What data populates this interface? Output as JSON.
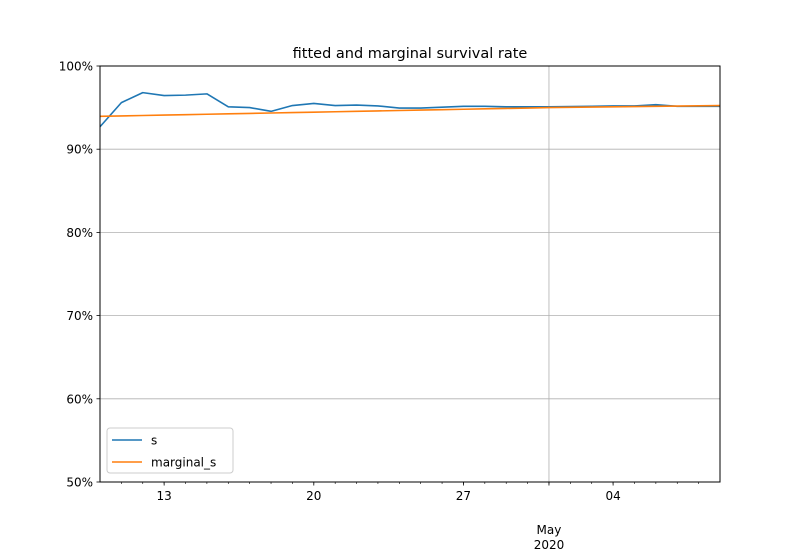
{
  "chart_data": {
    "type": "line",
    "title": "fitted and marginal survival rate",
    "xlabel": "",
    "ylabel": "",
    "x": [
      "2020-04-10",
      "2020-04-11",
      "2020-04-12",
      "2020-04-13",
      "2020-04-14",
      "2020-04-15",
      "2020-04-16",
      "2020-04-17",
      "2020-04-18",
      "2020-04-19",
      "2020-04-20",
      "2020-04-21",
      "2020-04-22",
      "2020-04-23",
      "2020-04-24",
      "2020-04-25",
      "2020-04-26",
      "2020-04-27",
      "2020-04-28",
      "2020-04-29",
      "2020-04-30",
      "2020-05-01",
      "2020-05-02",
      "2020-05-03",
      "2020-05-04",
      "2020-05-05",
      "2020-05-06",
      "2020-05-07",
      "2020-05-08",
      "2020-05-09"
    ],
    "xlim": [
      "2020-04-10",
      "2020-05-09"
    ],
    "ylim": [
      50,
      100
    ],
    "y_ticks": [
      {
        "value": 50,
        "label": "50%"
      },
      {
        "value": 60,
        "label": "60%"
      },
      {
        "value": 70,
        "label": "70%"
      },
      {
        "value": 80,
        "label": "80%"
      },
      {
        "value": 90,
        "label": "90%"
      },
      {
        "value": 100,
        "label": "100%"
      }
    ],
    "x_major_ticks": [
      {
        "date": "2020-04-13",
        "label": "13"
      },
      {
        "date": "2020-04-20",
        "label": "20"
      },
      {
        "date": "2020-04-27",
        "label": "27"
      },
      {
        "date": "2020-05-04",
        "label": "04"
      }
    ],
    "x_month_tick": {
      "date": "2020-05-01",
      "label": "May",
      "sublabel": "2020"
    },
    "grid": {
      "y": true,
      "x_month": true
    },
    "legend_position": "lower-left",
    "series": [
      {
        "name": "s",
        "color": "#1f77b4",
        "values": [
          92.7,
          95.6,
          96.8,
          96.45,
          96.5,
          96.65,
          95.1,
          95.0,
          94.55,
          95.25,
          95.5,
          95.25,
          95.3,
          95.2,
          94.95,
          94.95,
          95.05,
          95.15,
          95.15,
          95.1,
          95.1,
          95.1,
          95.12,
          95.15,
          95.2,
          95.2,
          95.35,
          95.15,
          95.15,
          95.15
        ]
      },
      {
        "name": "marginal_s",
        "color": "#ff7f0e",
        "values": [
          93.95,
          94.0,
          94.05,
          94.1,
          94.15,
          94.2,
          94.25,
          94.3,
          94.35,
          94.4,
          94.45,
          94.5,
          94.55,
          94.6,
          94.65,
          94.7,
          94.75,
          94.8,
          94.85,
          94.9,
          94.95,
          95.0,
          95.03,
          95.06,
          95.09,
          95.12,
          95.15,
          95.18,
          95.21,
          95.25
        ]
      }
    ]
  }
}
